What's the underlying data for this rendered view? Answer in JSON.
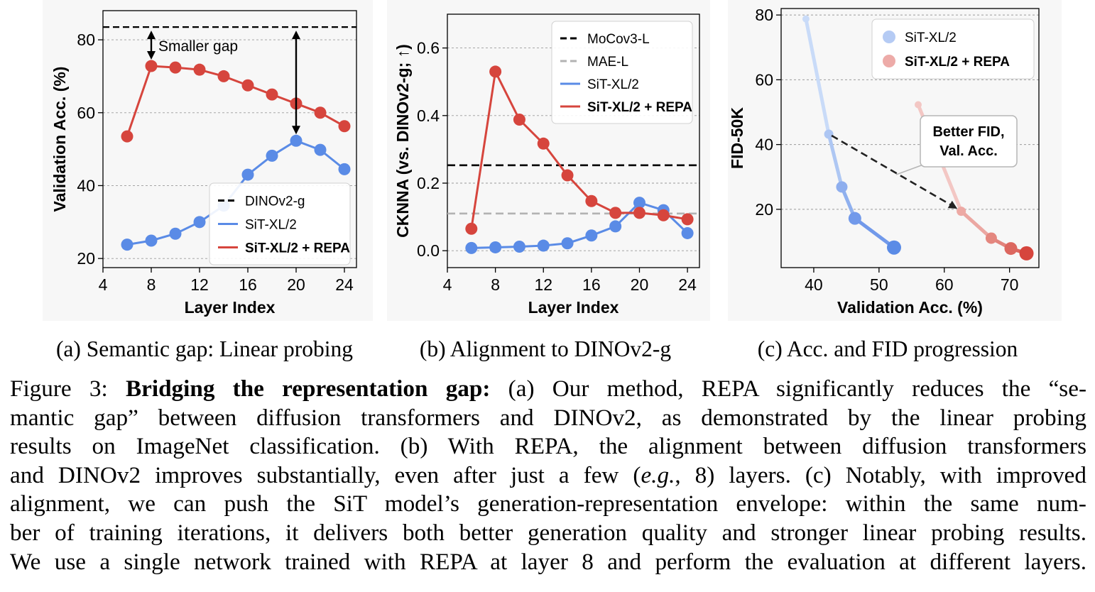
{
  "figure": {
    "colors": {
      "blue": "#5a8be6",
      "red": "#d6453d",
      "black": "#000000",
      "gray": "#b3b3b3",
      "panel_bg": "#f7f7f7",
      "blue_light": "#bcd1f6",
      "red_light": "#f0b8b4"
    },
    "subcaptions": [
      "(a) Semantic gap: Linear probing",
      "(b) Alignment to DINOv2-g",
      "(c) Acc. and FID progression"
    ]
  },
  "chart_data": [
    {
      "type": "line",
      "title": "",
      "xlabel": "Layer Index",
      "ylabel": "Validation Acc. (%)",
      "xlim": [
        4,
        25
      ],
      "ylim": [
        17.5,
        88
      ],
      "xticks": [
        4,
        8,
        12,
        16,
        20,
        24
      ],
      "yticks": [
        20,
        40,
        60,
        80
      ],
      "grid": true,
      "legend_position": "lower-right",
      "series": [
        {
          "name": "DINOv2-g",
          "style": "dashed",
          "color": "black",
          "hline": 83.5
        },
        {
          "name": "SiT-XL/2",
          "style": "solid",
          "color": "blue",
          "x": [
            6,
            8,
            10,
            12,
            14,
            16,
            18,
            20,
            22,
            24
          ],
          "y": [
            23.8,
            24.9,
            26.8,
            30.0,
            34.5,
            43.0,
            48.2,
            52.3,
            49.8,
            44.5
          ]
        },
        {
          "name": "SiT-XL/2 + REPA",
          "style": "solid",
          "color": "red",
          "x": [
            6,
            8,
            10,
            12,
            14,
            16,
            18,
            20,
            22,
            24
          ],
          "y": [
            53.5,
            72.8,
            72.4,
            71.8,
            70.0,
            67.5,
            65.0,
            62.5,
            60.0,
            56.3
          ]
        }
      ],
      "annotations": [
        {
          "text": "Smaller gap",
          "type": "double-arrow",
          "x": 8,
          "y_from": 72.8,
          "y_to": 83.5
        },
        {
          "text": "",
          "type": "double-arrow",
          "x": 20,
          "y_from": 52.3,
          "y_to": 83.5
        }
      ]
    },
    {
      "type": "line",
      "title": "",
      "xlabel": "Layer Index",
      "ylabel": "CKNNA (vs. DINOv2-g; ↑)",
      "xlim": [
        4,
        25
      ],
      "ylim": [
        -0.05,
        0.7
      ],
      "xticks": [
        4,
        8,
        12,
        16,
        20,
        24
      ],
      "yticks": [
        0.0,
        0.2,
        0.4,
        0.6
      ],
      "ytick_labels": [
        "0.0",
        "0.2",
        "0.4",
        "0.6"
      ],
      "grid": true,
      "legend_position": "top-right",
      "series": [
        {
          "name": "MoCov3-L",
          "style": "dashed",
          "color": "black",
          "hline": 0.253
        },
        {
          "name": "MAE-L",
          "style": "dashed",
          "color": "gray",
          "hline": 0.11
        },
        {
          "name": "SiT-XL/2",
          "style": "solid",
          "color": "blue",
          "x": [
            6,
            8,
            10,
            12,
            14,
            16,
            18,
            20,
            22,
            24
          ],
          "y": [
            0.008,
            0.01,
            0.012,
            0.015,
            0.022,
            0.045,
            0.072,
            0.142,
            0.12,
            0.052
          ]
        },
        {
          "name": "SiT-XL/2 + REPA",
          "style": "solid",
          "color": "red",
          "x": [
            6,
            8,
            10,
            12,
            14,
            16,
            18,
            20,
            22,
            24
          ],
          "y": [
            0.065,
            0.53,
            0.388,
            0.317,
            0.223,
            0.147,
            0.112,
            0.112,
            0.105,
            0.093
          ]
        }
      ]
    },
    {
      "type": "scatter",
      "title": "",
      "xlabel": "Validation Acc. (%)",
      "ylabel": "FID-50K",
      "xlim": [
        35,
        74.5
      ],
      "ylim": [
        2,
        82
      ],
      "xticks": [
        40,
        50,
        60,
        70
      ],
      "yticks": [
        20,
        40,
        60,
        80
      ],
      "grid": true,
      "legend_position": "top-right",
      "series": [
        {
          "name": "SiT-XL/2",
          "color": "blue",
          "x": [
            38.8,
            42.3,
            44.3,
            46.3,
            52.3
          ],
          "y": [
            78.8,
            43.2,
            26.9,
            17.2,
            8.2
          ]
        },
        {
          "name": "SiT-XL/2 + REPA",
          "color": "red",
          "x": [
            56.0,
            62.6,
            67.2,
            70.2,
            72.6
          ],
          "y": [
            52.3,
            19.4,
            11.1,
            7.9,
            6.4
          ]
        }
      ],
      "annotations": [
        {
          "text": "Better FID,\nVal. Acc.",
          "lines": [
            "Better FID,",
            "Val. Acc."
          ],
          "type": "arrow",
          "from": [
            42.3,
            43.2
          ],
          "to": [
            62.0,
            20.2
          ]
        }
      ]
    }
  ],
  "caption": {
    "lines": [
      {
        "parts": [
          {
            "t": "Figure 3: ",
            "s": "normal"
          },
          {
            "t": "Bridging the representation gap:",
            "s": "bold"
          },
          {
            "t": " (a) Our method, REPA significantly reduces the “se-",
            "s": "normal"
          }
        ]
      },
      {
        "parts": [
          {
            "t": "mantic gap” between diffusion transformers and DINOv2, as demonstrated by the linear probing",
            "s": "normal"
          }
        ]
      },
      {
        "parts": [
          {
            "t": "results on ImageNet classification.  (b) With REPA, the alignment between diffusion transformers",
            "s": "normal"
          }
        ]
      },
      {
        "parts": [
          {
            "t": "and DINOv2 improves substantially, even after just a few (",
            "s": "normal"
          },
          {
            "t": "e.g.",
            "s": "italic"
          },
          {
            "t": ", 8) layers. (c) Notably, with improved",
            "s": "normal"
          }
        ]
      },
      {
        "parts": [
          {
            "t": "alignment, we can push the SiT model’s generation-representation envelope: within the same num-",
            "s": "normal"
          }
        ]
      },
      {
        "parts": [
          {
            "t": "ber of training iterations, it delivers both better generation quality and stronger linear probing results.",
            "s": "normal"
          }
        ]
      },
      {
        "parts": [
          {
            "t": "We use a single network trained with REPA at layer 8 and perform the evaluation at different layers.",
            "s": "normal"
          }
        ]
      }
    ]
  }
}
